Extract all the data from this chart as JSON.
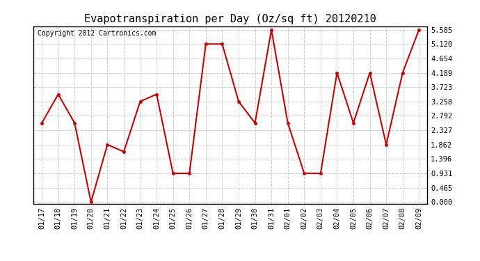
{
  "title": "Evapotranspiration per Day (Oz/sq ft) 20120210",
  "copyright": "Copyright 2012 Cartronics.com",
  "x_labels": [
    "01/17",
    "01/18",
    "01/19",
    "01/20",
    "01/21",
    "01/22",
    "01/23",
    "01/24",
    "01/25",
    "01/26",
    "01/27",
    "01/28",
    "01/29",
    "01/30",
    "01/31",
    "02/01",
    "02/02",
    "02/03",
    "02/04",
    "02/05",
    "02/06",
    "02/07",
    "02/08",
    "02/09"
  ],
  "y_values": [
    2.56,
    3.49,
    2.56,
    0.0,
    1.86,
    1.63,
    3.26,
    3.49,
    0.93,
    0.93,
    5.12,
    5.12,
    3.26,
    2.56,
    5.585,
    2.56,
    0.93,
    0.93,
    4.189,
    2.56,
    4.189,
    1.86,
    4.189,
    5.585
  ],
  "line_color": "#cc0000",
  "marker_color": "#cc0000",
  "background_color": "#ffffff",
  "plot_bg_color": "#ffffff",
  "grid_color": "#cccccc",
  "y_ticks": [
    0.0,
    0.465,
    0.931,
    1.396,
    1.862,
    2.327,
    2.792,
    3.258,
    3.723,
    4.189,
    4.654,
    5.12,
    5.585
  ],
  "ylim": [
    -0.05,
    5.7
  ],
  "title_fontsize": 11,
  "copyright_fontsize": 7,
  "tick_fontsize": 7.5
}
